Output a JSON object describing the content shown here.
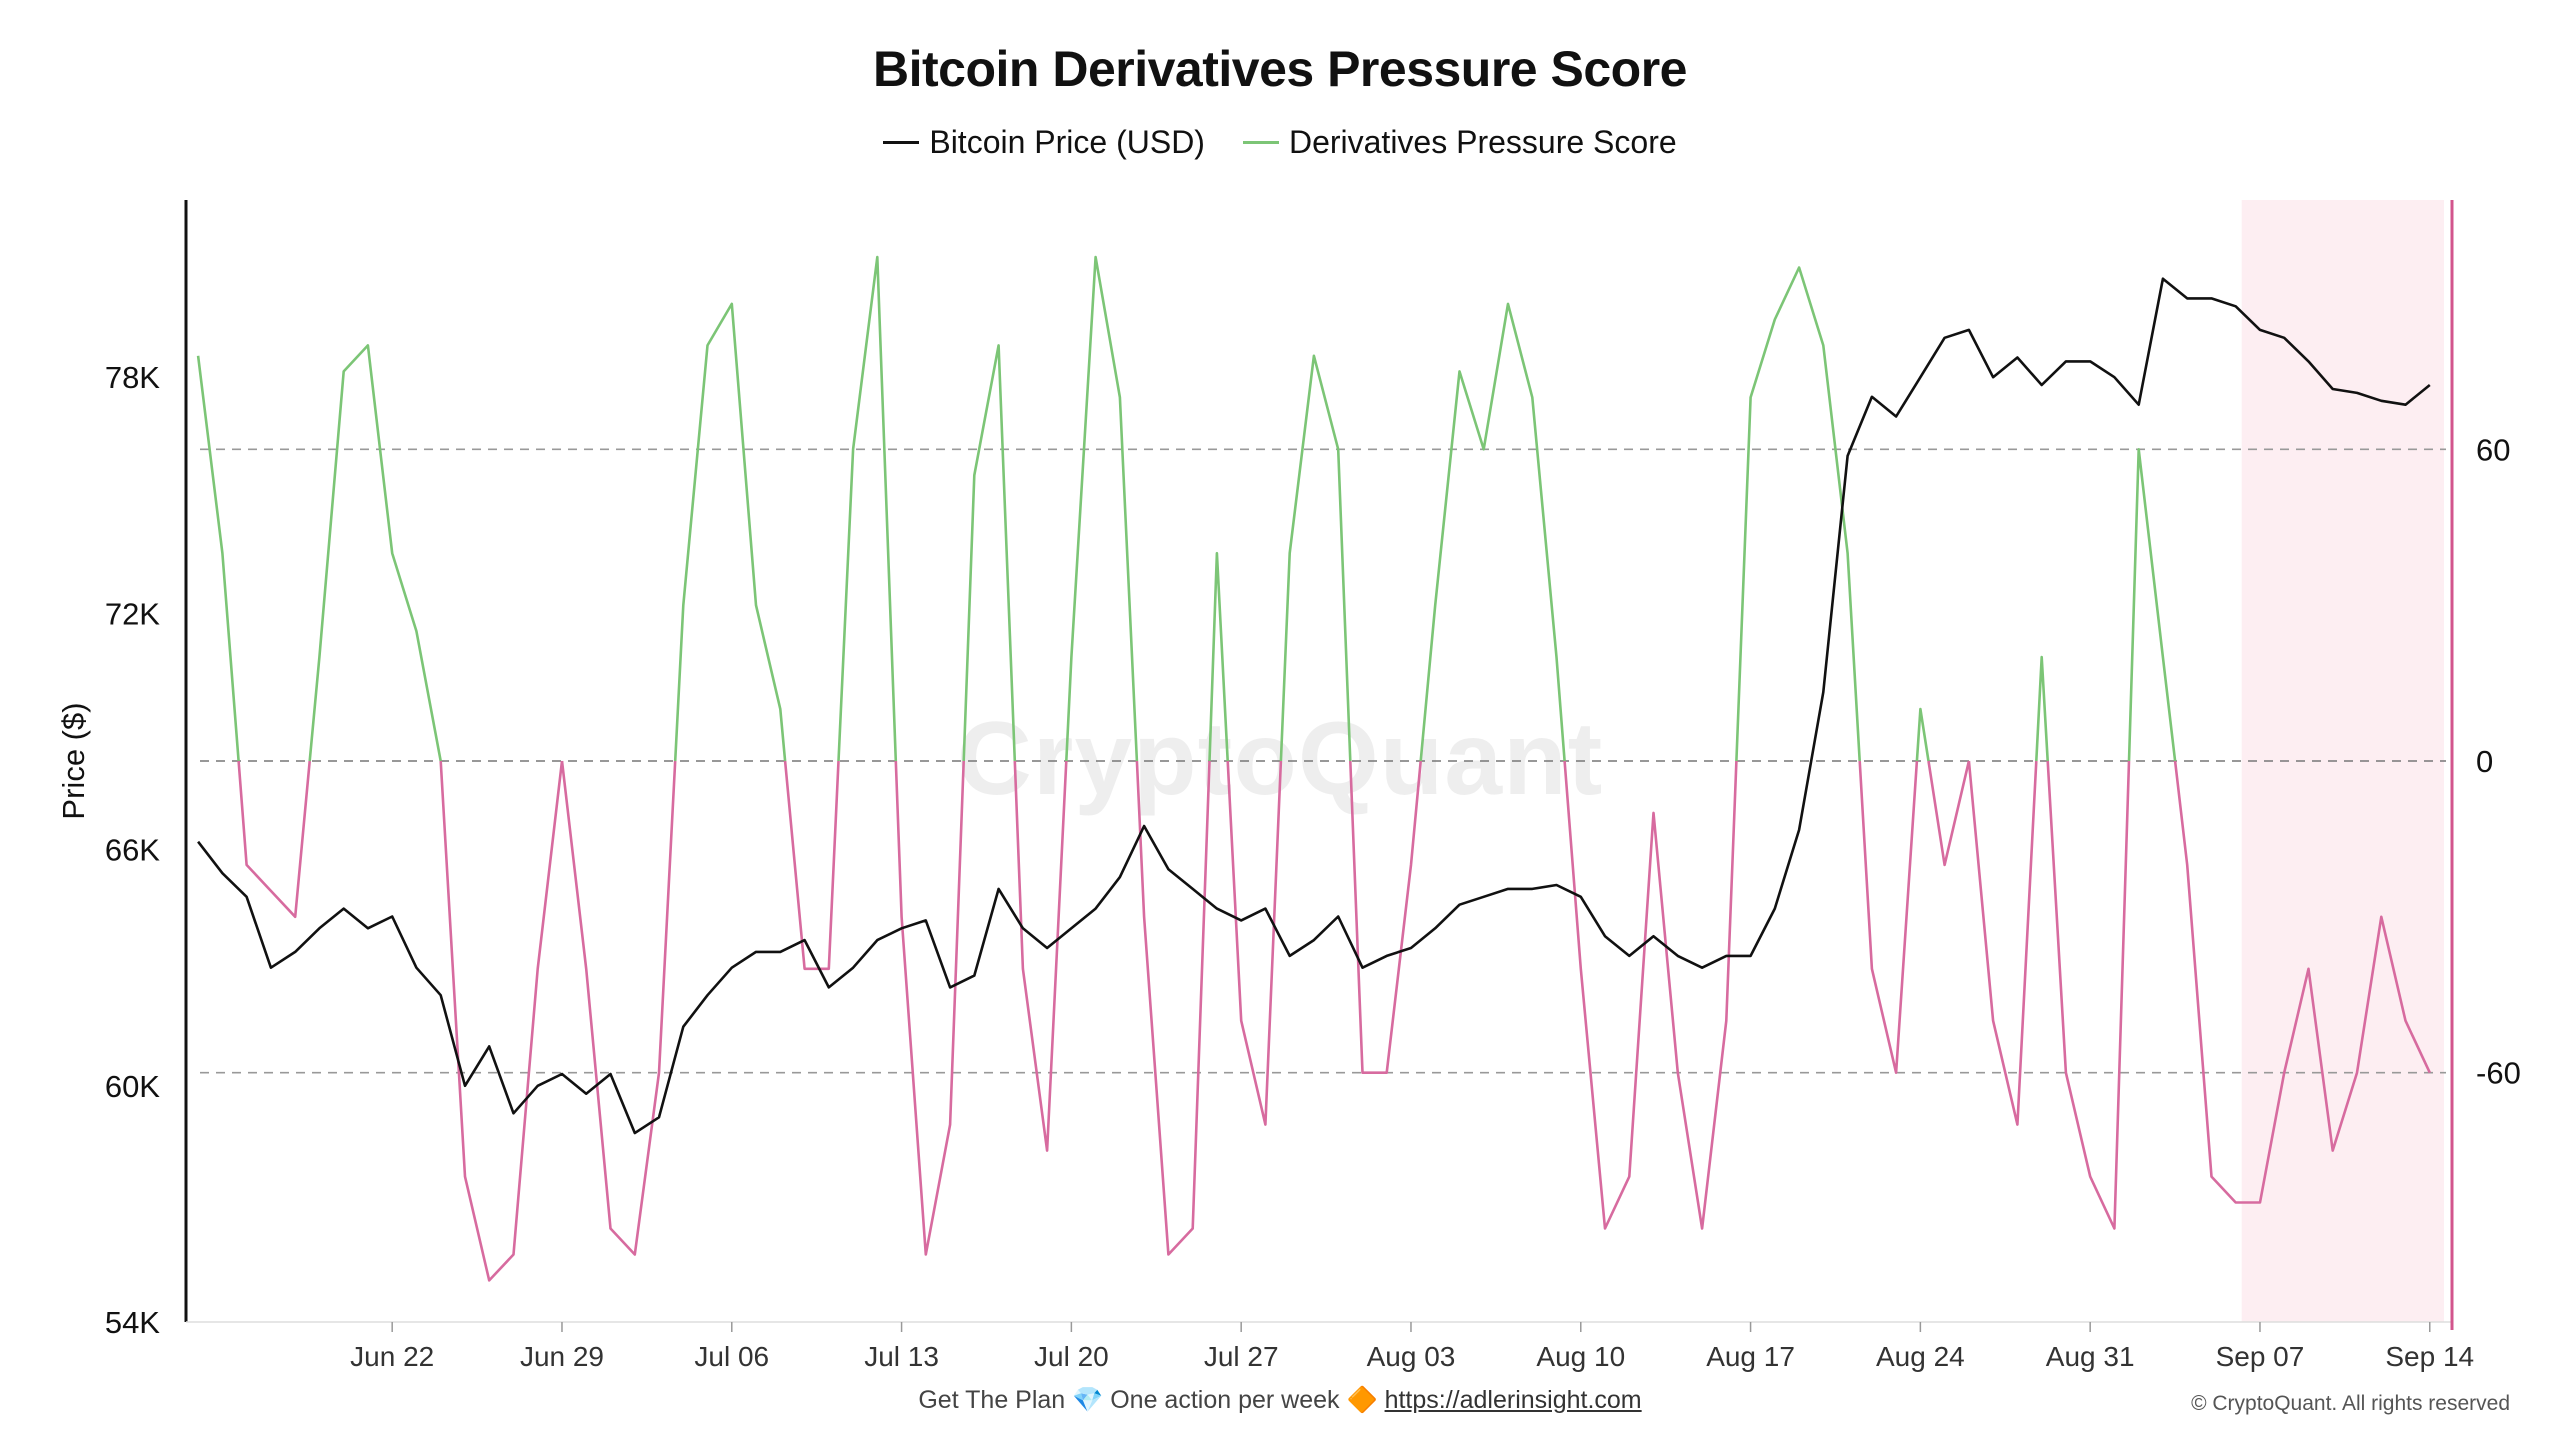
{
  "chart_data": {
    "type": "line",
    "title": "Bitcoin Derivatives Pressure Score",
    "xlabel": "",
    "ylabel": "Price ($)",
    "x_ticks": [
      "Jun 22",
      "Jun 29",
      "Jul 06",
      "Jul 13",
      "Jul 20",
      "Jul 27",
      "Aug 03",
      "Aug 10",
      "Aug 17",
      "Aug 24",
      "Aug 31",
      "Sep 07",
      "Sep 14"
    ],
    "y_left": {
      "ticks": [
        "54K",
        "60K",
        "66K",
        "72K",
        "78K"
      ],
      "tick_values": [
        54000,
        60000,
        66000,
        72000,
        78000
      ],
      "range": [
        54000,
        82500
      ]
    },
    "y_right": {
      "ticks": [
        "60",
        "0",
        "-60"
      ],
      "tick_values": [
        60,
        0,
        -60
      ],
      "range": [
        -108,
        108
      ]
    },
    "grid": true,
    "legend_position": "top-center",
    "highlight_region": {
      "start": "Sep 06",
      "end": "Sep 14",
      "color": "#fdeef2"
    },
    "colors": {
      "price": "#111111",
      "score_positive": "#7cc576",
      "score_negative": "#d76b9f",
      "axis_right": "#d2558c",
      "gridline": "#999999"
    },
    "series": [
      {
        "name": "Bitcoin Price (USD)",
        "axis": "left",
        "points": [
          [
            "2025-06-14",
            66200
          ],
          [
            "2025-06-15",
            65400
          ],
          [
            "2025-06-16",
            64800
          ],
          [
            "2025-06-17",
            63000
          ],
          [
            "2025-06-18",
            63400
          ],
          [
            "2025-06-19",
            64000
          ],
          [
            "2025-06-20",
            64500
          ],
          [
            "2025-06-21",
            64000
          ],
          [
            "2025-06-22",
            64300
          ],
          [
            "2025-06-23",
            63000
          ],
          [
            "2025-06-24",
            62300
          ],
          [
            "2025-06-25",
            60000
          ],
          [
            "2025-06-26",
            61000
          ],
          [
            "2025-06-27",
            59300
          ],
          [
            "2025-06-28",
            60000
          ],
          [
            "2025-06-29",
            60300
          ],
          [
            "2025-06-30",
            59800
          ],
          [
            "2025-07-01",
            60300
          ],
          [
            "2025-07-02",
            58800
          ],
          [
            "2025-07-03",
            59200
          ],
          [
            "2025-07-04",
            61500
          ],
          [
            "2025-07-05",
            62300
          ],
          [
            "2025-07-06",
            63000
          ],
          [
            "2025-07-07",
            63400
          ],
          [
            "2025-07-08",
            63400
          ],
          [
            "2025-07-09",
            63700
          ],
          [
            "2025-07-10",
            62500
          ],
          [
            "2025-07-11",
            63000
          ],
          [
            "2025-07-12",
            63700
          ],
          [
            "2025-07-13",
            64000
          ],
          [
            "2025-07-14",
            64200
          ],
          [
            "2025-07-15",
            62500
          ],
          [
            "2025-07-16",
            62800
          ],
          [
            "2025-07-17",
            65000
          ],
          [
            "2025-07-18",
            64000
          ],
          [
            "2025-07-19",
            63500
          ],
          [
            "2025-07-20",
            64000
          ],
          [
            "2025-07-21",
            64500
          ],
          [
            "2025-07-22",
            65300
          ],
          [
            "2025-07-23",
            66600
          ],
          [
            "2025-07-24",
            65500
          ],
          [
            "2025-07-25",
            65000
          ],
          [
            "2025-07-26",
            64500
          ],
          [
            "2025-07-27",
            64200
          ],
          [
            "2025-07-28",
            64500
          ],
          [
            "2025-07-29",
            63300
          ],
          [
            "2025-07-30",
            63700
          ],
          [
            "2025-07-31",
            64300
          ],
          [
            "2025-08-01",
            63000
          ],
          [
            "2025-08-02",
            63300
          ],
          [
            "2025-08-03",
            63500
          ],
          [
            "2025-08-04",
            64000
          ],
          [
            "2025-08-05",
            64600
          ],
          [
            "2025-08-06",
            64800
          ],
          [
            "2025-08-07",
            65000
          ],
          [
            "2025-08-08",
            65000
          ],
          [
            "2025-08-09",
            65100
          ],
          [
            "2025-08-10",
            64800
          ],
          [
            "2025-08-11",
            63800
          ],
          [
            "2025-08-12",
            63300
          ],
          [
            "2025-08-13",
            63800
          ],
          [
            "2025-08-14",
            63300
          ],
          [
            "2025-08-15",
            63000
          ],
          [
            "2025-08-16",
            63300
          ],
          [
            "2025-08-17",
            63300
          ],
          [
            "2025-08-18",
            64500
          ],
          [
            "2025-08-19",
            66500
          ],
          [
            "2025-08-20",
            70000
          ],
          [
            "2025-08-21",
            76000
          ],
          [
            "2025-08-22",
            77500
          ],
          [
            "2025-08-23",
            77000
          ],
          [
            "2025-08-24",
            78000
          ],
          [
            "2025-08-25",
            79000
          ],
          [
            "2025-08-26",
            79200
          ],
          [
            "2025-08-27",
            78000
          ],
          [
            "2025-08-28",
            78500
          ],
          [
            "2025-08-29",
            77800
          ],
          [
            "2025-08-30",
            78400
          ],
          [
            "2025-08-31",
            78400
          ],
          [
            "2025-09-01",
            78000
          ],
          [
            "2025-09-02",
            77300
          ],
          [
            "2025-09-03",
            80500
          ],
          [
            "2025-09-04",
            80000
          ],
          [
            "2025-09-05",
            80000
          ],
          [
            "2025-09-06",
            79800
          ],
          [
            "2025-09-07",
            79200
          ],
          [
            "2025-09-08",
            79000
          ],
          [
            "2025-09-09",
            78400
          ],
          [
            "2025-09-10",
            77700
          ],
          [
            "2025-09-11",
            77600
          ],
          [
            "2025-09-12",
            77400
          ],
          [
            "2025-09-13",
            77300
          ],
          [
            "2025-09-14",
            77800
          ]
        ]
      },
      {
        "name": "Derivatives Pressure Score",
        "axis": "right",
        "points": [
          [
            "2025-06-14",
            78
          ],
          [
            "2025-06-15",
            40
          ],
          [
            "2025-06-16",
            -20
          ],
          [
            "2025-06-17",
            -25
          ],
          [
            "2025-06-18",
            -30
          ],
          [
            "2025-06-19",
            20
          ],
          [
            "2025-06-20",
            75
          ],
          [
            "2025-06-21",
            80
          ],
          [
            "2025-06-22",
            40
          ],
          [
            "2025-06-23",
            25
          ],
          [
            "2025-06-24",
            0
          ],
          [
            "2025-06-25",
            -80
          ],
          [
            "2025-06-26",
            -100
          ],
          [
            "2025-06-27",
            -95
          ],
          [
            "2025-06-28",
            -40
          ],
          [
            "2025-06-29",
            0
          ],
          [
            "2025-06-30",
            -40
          ],
          [
            "2025-07-01",
            -90
          ],
          [
            "2025-07-02",
            -95
          ],
          [
            "2025-07-03",
            -60
          ],
          [
            "2025-07-04",
            30
          ],
          [
            "2025-07-05",
            80
          ],
          [
            "2025-07-06",
            88
          ],
          [
            "2025-07-07",
            30
          ],
          [
            "2025-07-08",
            10
          ],
          [
            "2025-07-09",
            -40
          ],
          [
            "2025-07-10",
            -40
          ],
          [
            "2025-07-11",
            60
          ],
          [
            "2025-07-12",
            97
          ],
          [
            "2025-07-13",
            -30
          ],
          [
            "2025-07-14",
            -95
          ],
          [
            "2025-07-15",
            -70
          ],
          [
            "2025-07-16",
            55
          ],
          [
            "2025-07-17",
            80
          ],
          [
            "2025-07-18",
            -40
          ],
          [
            "2025-07-19",
            -75
          ],
          [
            "2025-07-20",
            20
          ],
          [
            "2025-07-21",
            97
          ],
          [
            "2025-07-22",
            70
          ],
          [
            "2025-07-23",
            -30
          ],
          [
            "2025-07-24",
            -95
          ],
          [
            "2025-07-25",
            -90
          ],
          [
            "2025-07-26",
            40
          ],
          [
            "2025-07-27",
            -50
          ],
          [
            "2025-07-28",
            -70
          ],
          [
            "2025-07-29",
            40
          ],
          [
            "2025-07-30",
            78
          ],
          [
            "2025-07-31",
            60
          ],
          [
            "2025-08-01",
            -60
          ],
          [
            "2025-08-02",
            -60
          ],
          [
            "2025-08-03",
            -20
          ],
          [
            "2025-08-04",
            30
          ],
          [
            "2025-08-05",
            75
          ],
          [
            "2025-08-06",
            60
          ],
          [
            "2025-08-07",
            88
          ],
          [
            "2025-08-08",
            70
          ],
          [
            "2025-08-09",
            20
          ],
          [
            "2025-08-10",
            -40
          ],
          [
            "2025-08-11",
            -90
          ],
          [
            "2025-08-12",
            -80
          ],
          [
            "2025-08-13",
            -10
          ],
          [
            "2025-08-14",
            -60
          ],
          [
            "2025-08-15",
            -90
          ],
          [
            "2025-08-16",
            -50
          ],
          [
            "2025-08-17",
            70
          ],
          [
            "2025-08-18",
            85
          ],
          [
            "2025-08-19",
            95
          ],
          [
            "2025-08-20",
            80
          ],
          [
            "2025-08-21",
            40
          ],
          [
            "2025-08-22",
            -40
          ],
          [
            "2025-08-23",
            -60
          ],
          [
            "2025-08-24",
            10
          ],
          [
            "2025-08-25",
            -20
          ],
          [
            "2025-08-26",
            0
          ],
          [
            "2025-08-27",
            -50
          ],
          [
            "2025-08-28",
            -70
          ],
          [
            "2025-08-29",
            20
          ],
          [
            "2025-08-30",
            -60
          ],
          [
            "2025-08-31",
            -80
          ],
          [
            "2025-09-01",
            -90
          ],
          [
            "2025-09-02",
            60
          ],
          [
            "2025-09-03",
            20
          ],
          [
            "2025-09-04",
            -20
          ],
          [
            "2025-09-05",
            -80
          ],
          [
            "2025-09-06",
            -85
          ],
          [
            "2025-09-07",
            -85
          ],
          [
            "2025-09-08",
            -60
          ],
          [
            "2025-09-09",
            -40
          ],
          [
            "2025-09-10",
            -75
          ],
          [
            "2025-09-11",
            -60
          ],
          [
            "2025-09-12",
            -30
          ],
          [
            "2025-09-13",
            -50
          ],
          [
            "2025-09-14",
            -60
          ]
        ]
      }
    ]
  },
  "footer": {
    "text": "Get The Plan 💎 One action per week 🔶",
    "link": "https://adlerinsight.com",
    "copyright": "© CryptoQuant. All rights reserved"
  },
  "watermark": "CryptoQuant"
}
